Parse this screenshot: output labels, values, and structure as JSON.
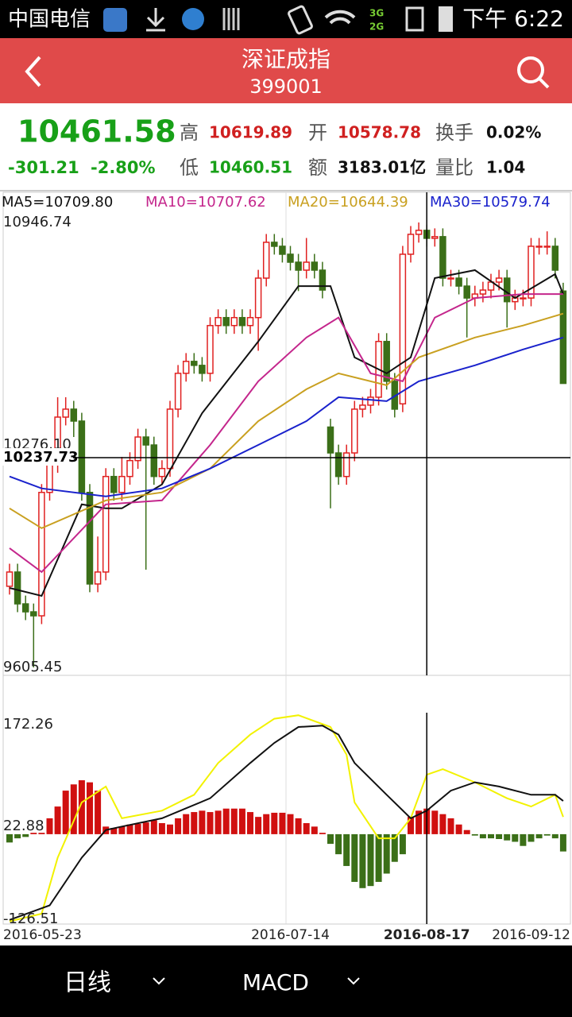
{
  "status_bar": {
    "carrier": "中国电信",
    "time": "下午 6:22"
  },
  "header": {
    "title": "深证成指",
    "code": "399001"
  },
  "quote": {
    "price": "10461.58",
    "change": "-301.21",
    "change_pct": "-2.80%",
    "high_label": "高",
    "high": "10619.89",
    "open_label": "开",
    "open": "10578.78",
    "turnover_label": "换手",
    "turnover": "0.02%",
    "low_label": "低",
    "low": "10460.51",
    "amount_label": "额",
    "amount": "3183.01亿",
    "volume_ratio_label": "量比",
    "volume_ratio": "1.04"
  },
  "chart_data": [
    {
      "type": "candlestick",
      "up_color": "#e02020",
      "down_color": "#3b6f18",
      "ylim": [
        9605.45,
        10946.74
      ],
      "yticks": [
        9605.45,
        {
          "value": 10276.1,
          "label": "10276.10"
        },
        10946.74
      ],
      "crosshair": {
        "x": 52,
        "y": 10237.73
      },
      "open": [
        9850,
        9893,
        9797,
        9773,
        9761,
        10133,
        10217,
        10360,
        10384,
        10348,
        10133,
        9857,
        9893,
        10181,
        10133,
        10181,
        10229,
        10300,
        10276,
        10181,
        10205,
        10384,
        10492,
        10528,
        10516,
        10492,
        10636,
        10660,
        10636,
        10660,
        10636,
        10660,
        10779,
        10887,
        10875,
        10851,
        10827,
        10803,
        10827,
        10803,
        10330,
        10252,
        10181,
        10252,
        10384,
        10396,
        10420,
        10588,
        10468,
        10400,
        10851,
        10911,
        10923,
        10899,
        10904,
        10779,
        10779,
        10755,
        10719,
        10731,
        10743,
        10767,
        10779,
        10708,
        10719,
        10719,
        10875,
        10875,
        10875,
        10740
      ],
      "high": [
        9918,
        9918,
        9822,
        9798,
        10158,
        10242,
        10420,
        10420,
        10409,
        10373,
        10158,
        10000,
        10206,
        10206,
        10240,
        10254,
        10325,
        10325,
        10301,
        10230,
        10409,
        10517,
        10553,
        10553,
        10541,
        10661,
        10685,
        10685,
        10685,
        10685,
        10685,
        10804,
        10912,
        10912,
        10900,
        10876,
        10852,
        10900,
        10852,
        10828,
        10355,
        10277,
        10277,
        10409,
        10421,
        10445,
        10613,
        10613,
        10493,
        10876,
        10936,
        10946.74,
        10940,
        10929,
        10929,
        10804,
        10804,
        10780,
        10756,
        10768,
        10792,
        10804,
        10804,
        10744,
        10744,
        10900,
        10900,
        10920,
        10900,
        10765
      ],
      "low": [
        9825,
        9772,
        9748,
        9605.45,
        9736,
        10108,
        10192,
        10335,
        10300,
        10108,
        9832,
        9832,
        9868,
        10108,
        10108,
        10156,
        10204,
        9900,
        10156,
        10156,
        10180,
        10359,
        10467,
        10491,
        10467,
        10467,
        10611,
        10611,
        10611,
        10611,
        10611,
        10560,
        10754,
        10850,
        10826,
        10802,
        10740,
        10778,
        10778,
        10718,
        10085,
        10156,
        10156,
        10227,
        10359,
        10371,
        10395,
        10443,
        10359,
        10375,
        10826,
        10886,
        10874,
        10874,
        10754,
        10754,
        10730,
        10600,
        10694,
        10706,
        10718,
        10742,
        10630,
        10683,
        10694,
        10694,
        10850,
        10850,
        10778,
        10460.51
      ],
      "close": [
        9893,
        9797,
        9773,
        9761,
        10133,
        10217,
        10360,
        10384,
        10348,
        10133,
        9857,
        9893,
        10181,
        10133,
        10181,
        10229,
        10300,
        10276,
        10181,
        10205,
        10384,
        10492,
        10528,
        10516,
        10492,
        10636,
        10660,
        10636,
        10660,
        10636,
        10660,
        10779,
        10887,
        10875,
        10851,
        10827,
        10803,
        10827,
        10803,
        10743,
        10252,
        10181,
        10252,
        10384,
        10396,
        10420,
        10588,
        10468,
        10384,
        10851,
        10911,
        10923,
        10899,
        10904,
        10779,
        10779,
        10755,
        10719,
        10731,
        10743,
        10767,
        10779,
        10708,
        10719,
        10719,
        10875,
        10875,
        10875,
        10803,
        10461.58
      ],
      "series": [
        {
          "name": "MA5=10709.80",
          "color": "#111111",
          "x": [
            0,
            4,
            9,
            12,
            14,
            19,
            24,
            31,
            36,
            40,
            43,
            47,
            50,
            53,
            58,
            63,
            68,
            69
          ],
          "values": [
            9845,
            9821,
            10097,
            10085,
            10085,
            10157,
            10372,
            10588,
            10755,
            10755,
            10540,
            10492,
            10540,
            10779,
            10803,
            10719,
            10791,
            10731
          ]
        },
        {
          "name": "MA10=10707.62",
          "color": "#c4268c",
          "x": [
            0,
            4,
            12,
            19,
            25,
            31,
            37,
            41,
            45,
            49,
            53,
            58,
            64,
            69
          ],
          "values": [
            9965,
            9893,
            10097,
            10109,
            10276,
            10468,
            10600,
            10660,
            10492,
            10468,
            10660,
            10719,
            10731,
            10731
          ]
        },
        {
          "name": "MA20=10644.39",
          "color": "#c9a020",
          "x": [
            0,
            4,
            12,
            19,
            25,
            31,
            37,
            41,
            47,
            51,
            58,
            64,
            69
          ],
          "values": [
            10085,
            10025,
            10109,
            10133,
            10205,
            10348,
            10444,
            10492,
            10456,
            10540,
            10600,
            10636,
            10672
          ]
        },
        {
          "name": "MA30=10579.74",
          "color": "#1a22cc",
          "x": [
            0,
            4,
            12,
            19,
            25,
            31,
            37,
            41,
            47,
            51,
            58,
            64,
            69
          ],
          "values": [
            10181,
            10145,
            10121,
            10145,
            10205,
            10276,
            10348,
            10420,
            10408,
            10468,
            10516,
            10564,
            10600
          ]
        }
      ]
    },
    {
      "type": "macd",
      "up_color": "#d01010",
      "down_color": "#3b6f18",
      "ylim": [
        -126.51,
        172.26
      ],
      "yticks": [
        172.26,
        22.88,
        -126.51
      ],
      "categories": [
        "2016-05-23",
        null,
        null,
        null,
        null,
        null,
        null,
        null,
        null,
        null,
        null,
        null,
        null,
        null,
        null,
        null,
        null,
        null,
        null,
        null,
        null,
        null,
        null,
        null,
        null,
        null,
        null,
        null,
        null,
        null,
        null,
        null,
        null,
        null,
        null,
        "2016-07-14",
        null,
        null,
        null,
        null,
        null,
        null,
        null,
        null,
        null,
        null,
        null,
        null,
        null,
        null,
        null,
        null,
        "2016-08-17",
        null,
        null,
        null,
        null,
        null,
        null,
        null,
        null,
        null,
        null,
        null,
        null,
        null,
        null,
        null,
        null,
        "2016-09-12"
      ],
      "histogram": [
        -12,
        -6,
        -4,
        2,
        2,
        23,
        40,
        63,
        72,
        78,
        75,
        63,
        11,
        9,
        11,
        14,
        15,
        17,
        20,
        16,
        14,
        23,
        29,
        32,
        34,
        32,
        34,
        37,
        37,
        37,
        32,
        25,
        29,
        31,
        31,
        29,
        23,
        16,
        11,
        2,
        -14,
        -29,
        -46,
        -69,
        -78,
        -75,
        -69,
        -57,
        -40,
        -29,
        25,
        34,
        37,
        34,
        29,
        23,
        14,
        6,
        -2,
        -6,
        -6,
        -7,
        -9,
        -11,
        -17,
        -11,
        -6,
        -2,
        -6,
        -25
      ],
      "series": [
        {
          "color": "#f2f200",
          "x": [
            0,
            4,
            6,
            9,
            12,
            14,
            19,
            23,
            26,
            30,
            33,
            36,
            40,
            42,
            43,
            46,
            48,
            50,
            52,
            54,
            58,
            62,
            65,
            68,
            69
          ],
          "values": [
            -126,
            -115,
            -34,
            46,
            69,
            23,
            34,
            57,
            103,
            144,
            167,
            172,
            155,
            115,
            46,
            -6,
            -6,
            23,
            86,
            94,
            75,
            52,
            40,
            57,
            25
          ]
        },
        {
          "color": "#111111",
          "x": [
            0,
            5,
            9,
            12,
            14,
            19,
            25,
            30,
            33,
            36,
            39,
            41,
            43,
            47,
            50,
            52,
            55,
            58,
            61,
            65,
            68,
            69
          ],
          "values": [
            -124,
            -103,
            -34,
            6,
            11,
            23,
            52,
            103,
            132,
            155,
            157,
            144,
            103,
            57,
            23,
            34,
            63,
            75,
            69,
            57,
            57,
            48
          ]
        }
      ]
    }
  ],
  "bottom_bar": {
    "period": "日线",
    "indicator": "MACD"
  }
}
